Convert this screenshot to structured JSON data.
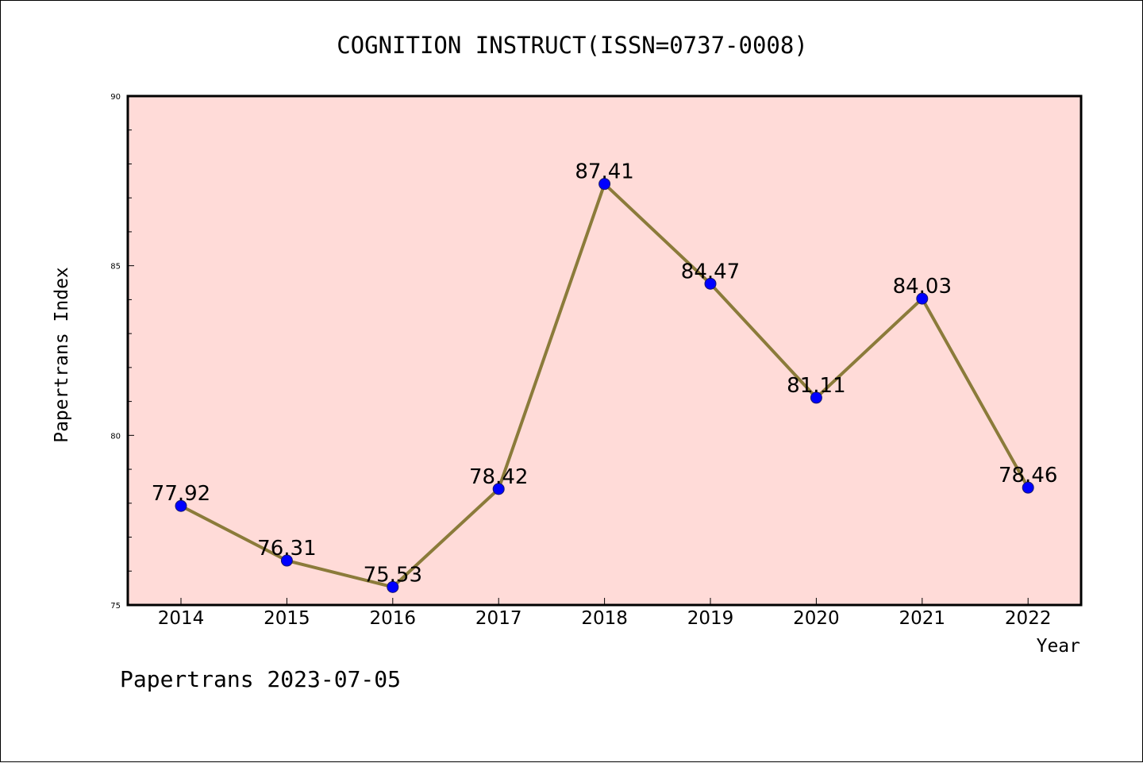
{
  "chart_data": {
    "type": "line",
    "title": "COGNITION INSTRUCT(ISSN=0737-0008)",
    "xlabel": "Year",
    "ylabel": "Papertrans Index",
    "x": [
      "2014",
      "2015",
      "2016",
      "2017",
      "2018",
      "2019",
      "2020",
      "2021",
      "2022"
    ],
    "series": [
      {
        "values": [
          77.92,
          76.31,
          75.53,
          78.42,
          87.41,
          84.47,
          81.11,
          84.03,
          78.46
        ],
        "labels": [
          "77.92",
          "76.31",
          "75.53",
          "78.42",
          "87.41",
          "84.47",
          "81.11",
          "84.03",
          "78.46"
        ]
      }
    ],
    "ylim": [
      75,
      90
    ],
    "yticks": [
      "75",
      "80",
      "85",
      "90"
    ],
    "y_minor_step": 1,
    "grid": false,
    "legend": "none",
    "colors": {
      "plot_background": "#FFDBD8",
      "line": "#8B7B3A",
      "marker": "#0000FF",
      "axes": "#000000"
    },
    "footer": "Papertrans 2023-07-05"
  }
}
